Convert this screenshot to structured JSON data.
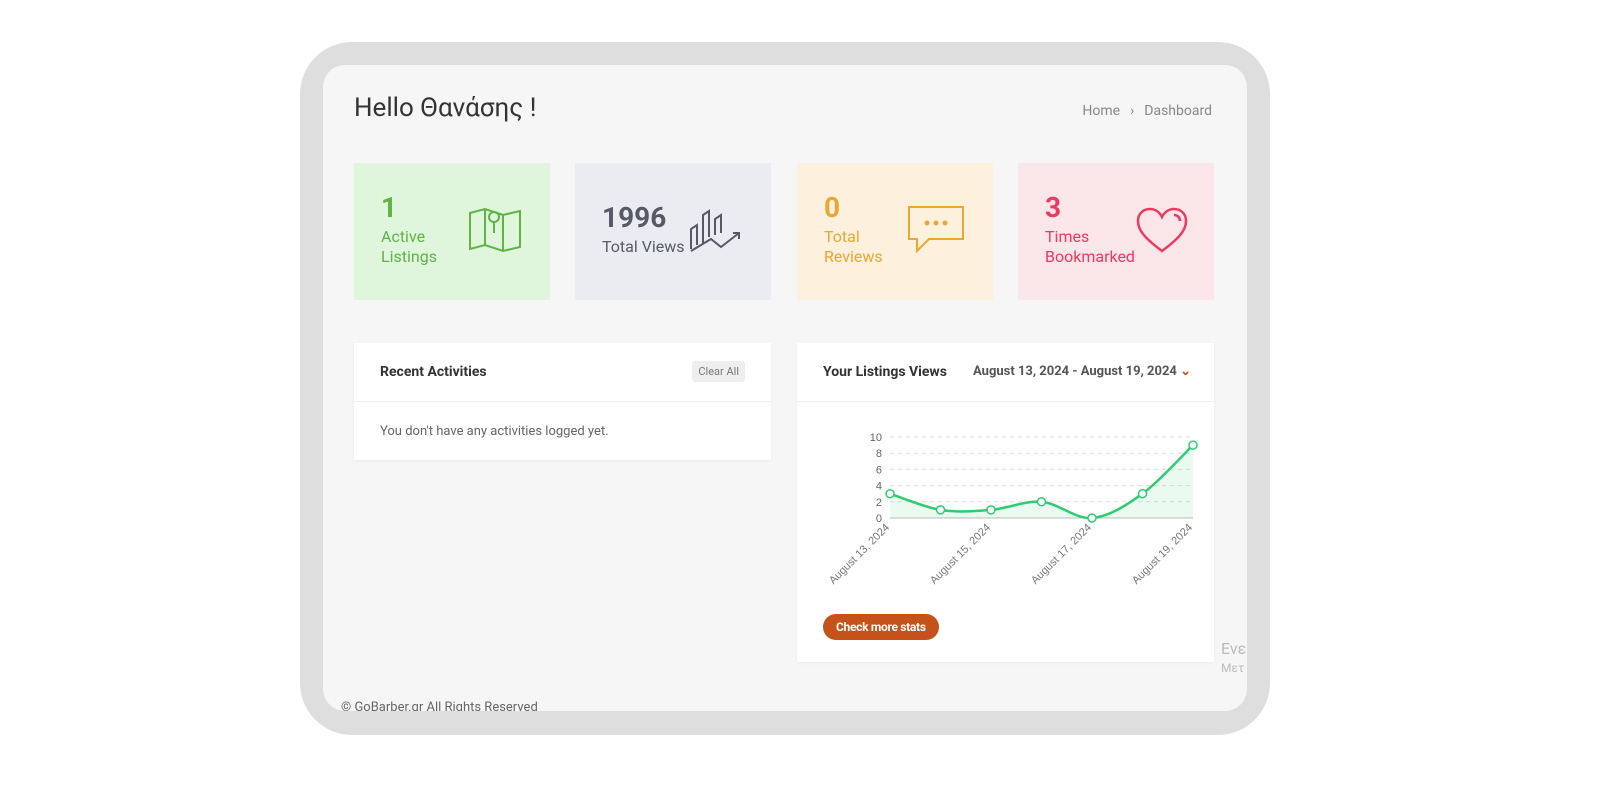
{
  "header": {
    "title": "Hello Θανάσης !",
    "breadcrumb": [
      "Home",
      "Dashboard"
    ]
  },
  "stats": [
    {
      "value": "1",
      "label": "Active Listings"
    },
    {
      "value": "1996",
      "label": "Total Views"
    },
    {
      "value": "0",
      "label": "Total Reviews"
    },
    {
      "value": "3",
      "label": "Times Bookmarked"
    }
  ],
  "activities": {
    "title": "Recent Activities",
    "button": "Clear All",
    "message": "You don't have any activities logged yet."
  },
  "views": {
    "title": "Your Listings Views",
    "range": "August 13, 2024 - August 19, 2024",
    "button": "Check more stats"
  },
  "chart_data": {
    "type": "line",
    "categories": [
      "August 13, 2024",
      null,
      "August 15, 2024",
      null,
      "August 17, 2024",
      null,
      "August 19, 2024"
    ],
    "values": [
      3,
      1,
      1,
      2,
      0,
      3,
      9
    ],
    "color": "#2ecc71",
    "ylim": [
      0,
      10
    ],
    "yticks": [
      0,
      2,
      4,
      6,
      8,
      10
    ],
    "grid": true
  },
  "footer": "© GoBarber.gr All Rights Reserved",
  "side_text": [
    "Ενε",
    "Μετ"
  ]
}
